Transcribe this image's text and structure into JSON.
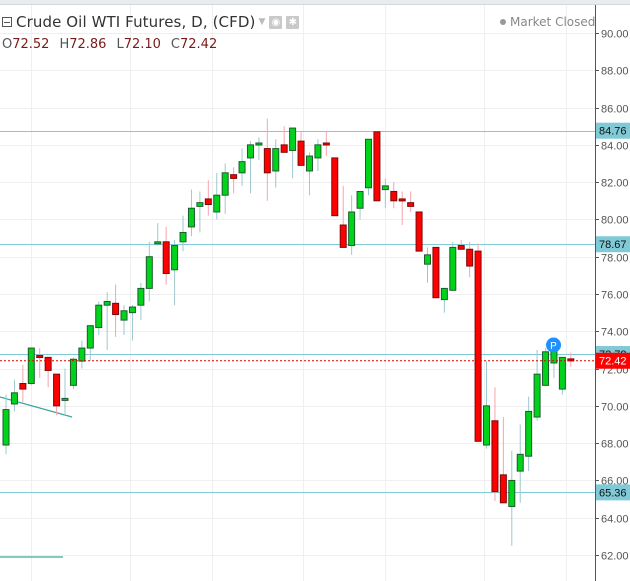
{
  "header": {
    "title": "Crude Oil WTI Futures, D, (CFD)",
    "ohlc": [
      {
        "label": "O",
        "value": "72.52"
      },
      {
        "label": "H",
        "value": "72.86"
      },
      {
        "label": "L",
        "value": "72.10"
      },
      {
        "label": "C",
        "value": "72.42"
      }
    ],
    "market_status": "Market Closed"
  },
  "colors": {
    "up": "#00d41a",
    "down": "#ff0000",
    "border": "#1e5b2e",
    "up_wick": "#9ec8cf",
    "down_wick": "#f2a6ae",
    "level_line": "#7fcad6",
    "current_line": "#e00000",
    "grid": "#efefef",
    "axis": "#555555",
    "trendline": "#3aa89a",
    "badge": "#1e90ff"
  },
  "chart_data": {
    "type": "candlestick",
    "title": "Crude Oil WTI Futures, D, (CFD)",
    "xlabel": "",
    "ylabel": "",
    "ylim": [
      61,
      91
    ],
    "y_ticks": [
      "90.00",
      "88.00",
      "86.00",
      "84.00",
      "82.00",
      "80.00",
      "78.00",
      "76.00",
      "74.00",
      "72.00",
      "70.00",
      "68.00",
      "66.00",
      "64.00",
      "62.00"
    ],
    "grid": true,
    "horizontal_levels": [
      {
        "label": "84.76",
        "value": 84.76
      },
      {
        "label": "78.67",
        "value": 78.67
      },
      {
        "label": "72.78",
        "value": 72.78
      },
      {
        "label": "65.36",
        "value": 65.36
      }
    ],
    "current_price": {
      "label": "72.42",
      "value": 72.42
    },
    "badge": {
      "label": "P",
      "candle_index": 64
    },
    "candles": [
      {
        "o": 67.9,
        "h": 70.6,
        "l": 67.4,
        "c": 69.8
      },
      {
        "o": 70.1,
        "h": 71.4,
        "l": 69.7,
        "c": 70.7
      },
      {
        "o": 71.2,
        "h": 72.2,
        "l": 70.2,
        "c": 70.9
      },
      {
        "o": 71.2,
        "h": 73.0,
        "l": 71.1,
        "c": 73.1
      },
      {
        "o": 72.7,
        "h": 73.1,
        "l": 71.5,
        "c": 72.6
      },
      {
        "o": 72.6,
        "h": 72.6,
        "l": 71.0,
        "c": 71.9
      },
      {
        "o": 71.7,
        "h": 71.7,
        "l": 69.5,
        "c": 70.0
      },
      {
        "o": 70.4,
        "h": 72.0,
        "l": 69.5,
        "c": 70.4
      },
      {
        "o": 71.1,
        "h": 72.6,
        "l": 70.9,
        "c": 72.5
      },
      {
        "o": 72.4,
        "h": 73.5,
        "l": 72.0,
        "c": 73.1
      },
      {
        "o": 73.1,
        "h": 74.2,
        "l": 72.4,
        "c": 74.3
      },
      {
        "o": 74.2,
        "h": 75.6,
        "l": 73.8,
        "c": 75.4
      },
      {
        "o": 75.4,
        "h": 76.1,
        "l": 73.0,
        "c": 75.6
      },
      {
        "o": 75.5,
        "h": 76.5,
        "l": 73.7,
        "c": 74.9
      },
      {
        "o": 74.6,
        "h": 75.4,
        "l": 73.8,
        "c": 75.1
      },
      {
        "o": 75.0,
        "h": 75.4,
        "l": 73.5,
        "c": 75.3
      },
      {
        "o": 75.4,
        "h": 76.6,
        "l": 74.6,
        "c": 76.3
      },
      {
        "o": 76.3,
        "h": 78.8,
        "l": 75.6,
        "c": 78.0
      },
      {
        "o": 78.7,
        "h": 79.8,
        "l": 78.6,
        "c": 78.8
      },
      {
        "o": 78.8,
        "h": 79.6,
        "l": 76.5,
        "c": 77.1
      },
      {
        "o": 77.3,
        "h": 78.9,
        "l": 75.4,
        "c": 78.6
      },
      {
        "o": 78.8,
        "h": 80.2,
        "l": 78.3,
        "c": 79.3
      },
      {
        "o": 79.6,
        "h": 81.6,
        "l": 79.1,
        "c": 80.6
      },
      {
        "o": 80.7,
        "h": 81.5,
        "l": 79.3,
        "c": 80.9
      },
      {
        "o": 81.1,
        "h": 82.1,
        "l": 80.2,
        "c": 80.8
      },
      {
        "o": 80.4,
        "h": 82.5,
        "l": 80.0,
        "c": 81.3
      },
      {
        "o": 81.3,
        "h": 83.0,
        "l": 80.3,
        "c": 82.5
      },
      {
        "o": 82.4,
        "h": 82.8,
        "l": 81.4,
        "c": 82.2
      },
      {
        "o": 82.5,
        "h": 83.8,
        "l": 81.8,
        "c": 83.1
      },
      {
        "o": 83.3,
        "h": 84.2,
        "l": 81.4,
        "c": 84.0
      },
      {
        "o": 84.0,
        "h": 84.4,
        "l": 83.2,
        "c": 84.1
      },
      {
        "o": 83.8,
        "h": 85.4,
        "l": 81.0,
        "c": 82.5
      },
      {
        "o": 82.6,
        "h": 84.3,
        "l": 81.7,
        "c": 83.8
      },
      {
        "o": 84.0,
        "h": 85.0,
        "l": 83.6,
        "c": 83.6
      },
      {
        "o": 83.7,
        "h": 84.7,
        "l": 82.2,
        "c": 84.9
      },
      {
        "o": 84.2,
        "h": 84.7,
        "l": 83.1,
        "c": 82.9
      },
      {
        "o": 82.6,
        "h": 83.6,
        "l": 81.3,
        "c": 83.4
      },
      {
        "o": 83.3,
        "h": 84.3,
        "l": 82.6,
        "c": 84.0
      },
      {
        "o": 84.1,
        "h": 84.7,
        "l": 83.4,
        "c": 84.0
      },
      {
        "o": 83.3,
        "h": 83.3,
        "l": 80.3,
        "c": 80.2
      },
      {
        "o": 79.7,
        "h": 81.8,
        "l": 79.3,
        "c": 78.5
      },
      {
        "o": 78.6,
        "h": 81.3,
        "l": 78.1,
        "c": 80.4
      },
      {
        "o": 80.6,
        "h": 81.5,
        "l": 80.0,
        "c": 81.5
      },
      {
        "o": 81.7,
        "h": 82.8,
        "l": 81.3,
        "c": 84.3
      },
      {
        "o": 84.7,
        "h": 84.7,
        "l": 81.3,
        "c": 81.0
      },
      {
        "o": 81.6,
        "h": 82.2,
        "l": 80.6,
        "c": 81.8
      },
      {
        "o": 81.5,
        "h": 82.0,
        "l": 80.6,
        "c": 81.0
      },
      {
        "o": 81.1,
        "h": 81.5,
        "l": 79.7,
        "c": 81.0
      },
      {
        "o": 80.9,
        "h": 81.5,
        "l": 80.4,
        "c": 80.7
      },
      {
        "o": 80.4,
        "h": 80.4,
        "l": 78.3,
        "c": 78.3
      },
      {
        "o": 77.6,
        "h": 78.5,
        "l": 76.6,
        "c": 78.1
      },
      {
        "o": 78.5,
        "h": 78.4,
        "l": 76.0,
        "c": 75.8
      },
      {
        "o": 75.7,
        "h": 76.3,
        "l": 75.0,
        "c": 76.3
      },
      {
        "o": 76.2,
        "h": 78.8,
        "l": 76.2,
        "c": 78.5
      },
      {
        "o": 78.6,
        "h": 78.9,
        "l": 78.4,
        "c": 78.4
      },
      {
        "o": 78.4,
        "h": 78.8,
        "l": 76.9,
        "c": 77.5
      },
      {
        "o": 78.3,
        "h": 78.7,
        "l": 72.1,
        "c": 68.1
      },
      {
        "o": 67.9,
        "h": 72.4,
        "l": 67.7,
        "c": 70.0
      },
      {
        "o": 69.2,
        "h": 71.0,
        "l": 64.9,
        "c": 65.4
      },
      {
        "o": 66.3,
        "h": 69.4,
        "l": 65.2,
        "c": 64.8
      },
      {
        "o": 64.6,
        "h": 67.6,
        "l": 62.5,
        "c": 66.0
      },
      {
        "o": 66.5,
        "h": 69.0,
        "l": 64.8,
        "c": 67.4
      },
      {
        "o": 67.3,
        "h": 70.5,
        "l": 66.5,
        "c": 69.7
      },
      {
        "o": 69.4,
        "h": 73.0,
        "l": 69.2,
        "c": 71.7
      },
      {
        "o": 71.1,
        "h": 73.1,
        "l": 71.8,
        "c": 72.9
      },
      {
        "o": 72.3,
        "h": 72.9,
        "l": 71.5,
        "c": 73.1
      },
      {
        "o": 70.9,
        "h": 71.9,
        "l": 70.6,
        "c": 72.6
      },
      {
        "o": 72.52,
        "h": 72.86,
        "l": 72.1,
        "c": 72.42
      }
    ]
  }
}
